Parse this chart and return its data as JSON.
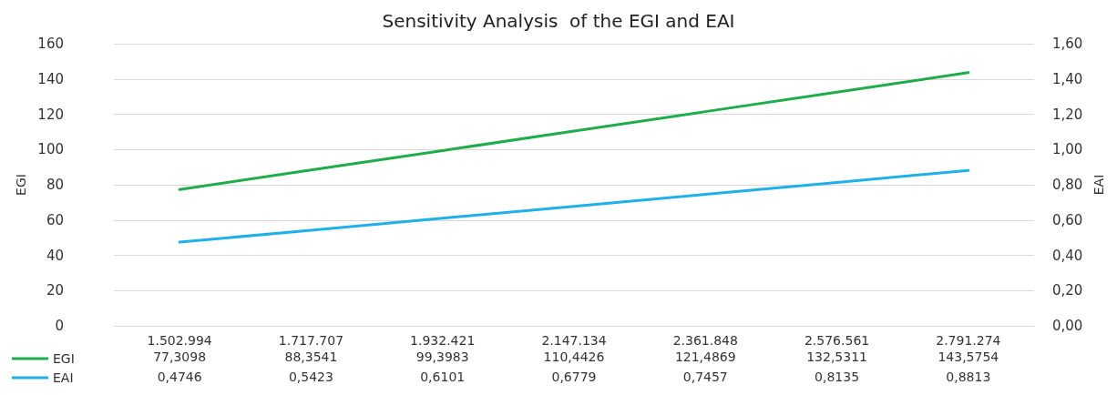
{
  "chart_data": {
    "type": "line",
    "title": "Sensitivity Analysis  of the EGI and EAI",
    "ylabel": "EGI",
    "y2label": "EAI",
    "categories": [
      "1.502.994",
      "1.717.707",
      "1.932.421",
      "2.147.134",
      "2.361.848",
      "2.576.561",
      "2.791.274"
    ],
    "series": [
      {
        "name": "EGI",
        "color": "#1fad4c",
        "values": [
          77.3098,
          88.3541,
          99.3983,
          110.4426,
          121.4869,
          132.5311,
          143.5754
        ],
        "value_labels": [
          "77,3098",
          "88,3541",
          "99,3983",
          "110,4426",
          "121,4869",
          "132,5311",
          "143,5754"
        ]
      },
      {
        "name": "EAI",
        "color": "#1eb0e6",
        "axis": "y2",
        "values": [
          0.4746,
          0.5423,
          0.6101,
          0.6779,
          0.7457,
          0.8135,
          0.8813
        ],
        "value_labels": [
          "0,4746",
          "0,5423",
          "0,6101",
          "0,6779",
          "0,7457",
          "0,8135",
          "0,8813"
        ]
      }
    ],
    "ylim": [
      0,
      160
    ],
    "yticks": [
      0,
      20,
      40,
      60,
      80,
      100,
      120,
      140,
      160
    ],
    "y2lim": [
      0,
      1.6
    ],
    "y2ticks": [
      {
        "value": 0,
        "label": "0,00"
      },
      {
        "value": 0.2,
        "label": "0,20"
      },
      {
        "value": 0.4,
        "label": "0,40"
      },
      {
        "value": 0.6,
        "label": "0,60"
      },
      {
        "value": 0.8,
        "label": "0,80"
      },
      {
        "value": 1,
        "label": "1,00"
      },
      {
        "value": 1.2,
        "label": "1,20"
      },
      {
        "value": 1.4,
        "label": "1,40"
      },
      {
        "value": 1.6,
        "label": "1,60"
      }
    ],
    "grid": "y",
    "legend": "bottom left",
    "marker": "none",
    "line_style": "solid"
  }
}
